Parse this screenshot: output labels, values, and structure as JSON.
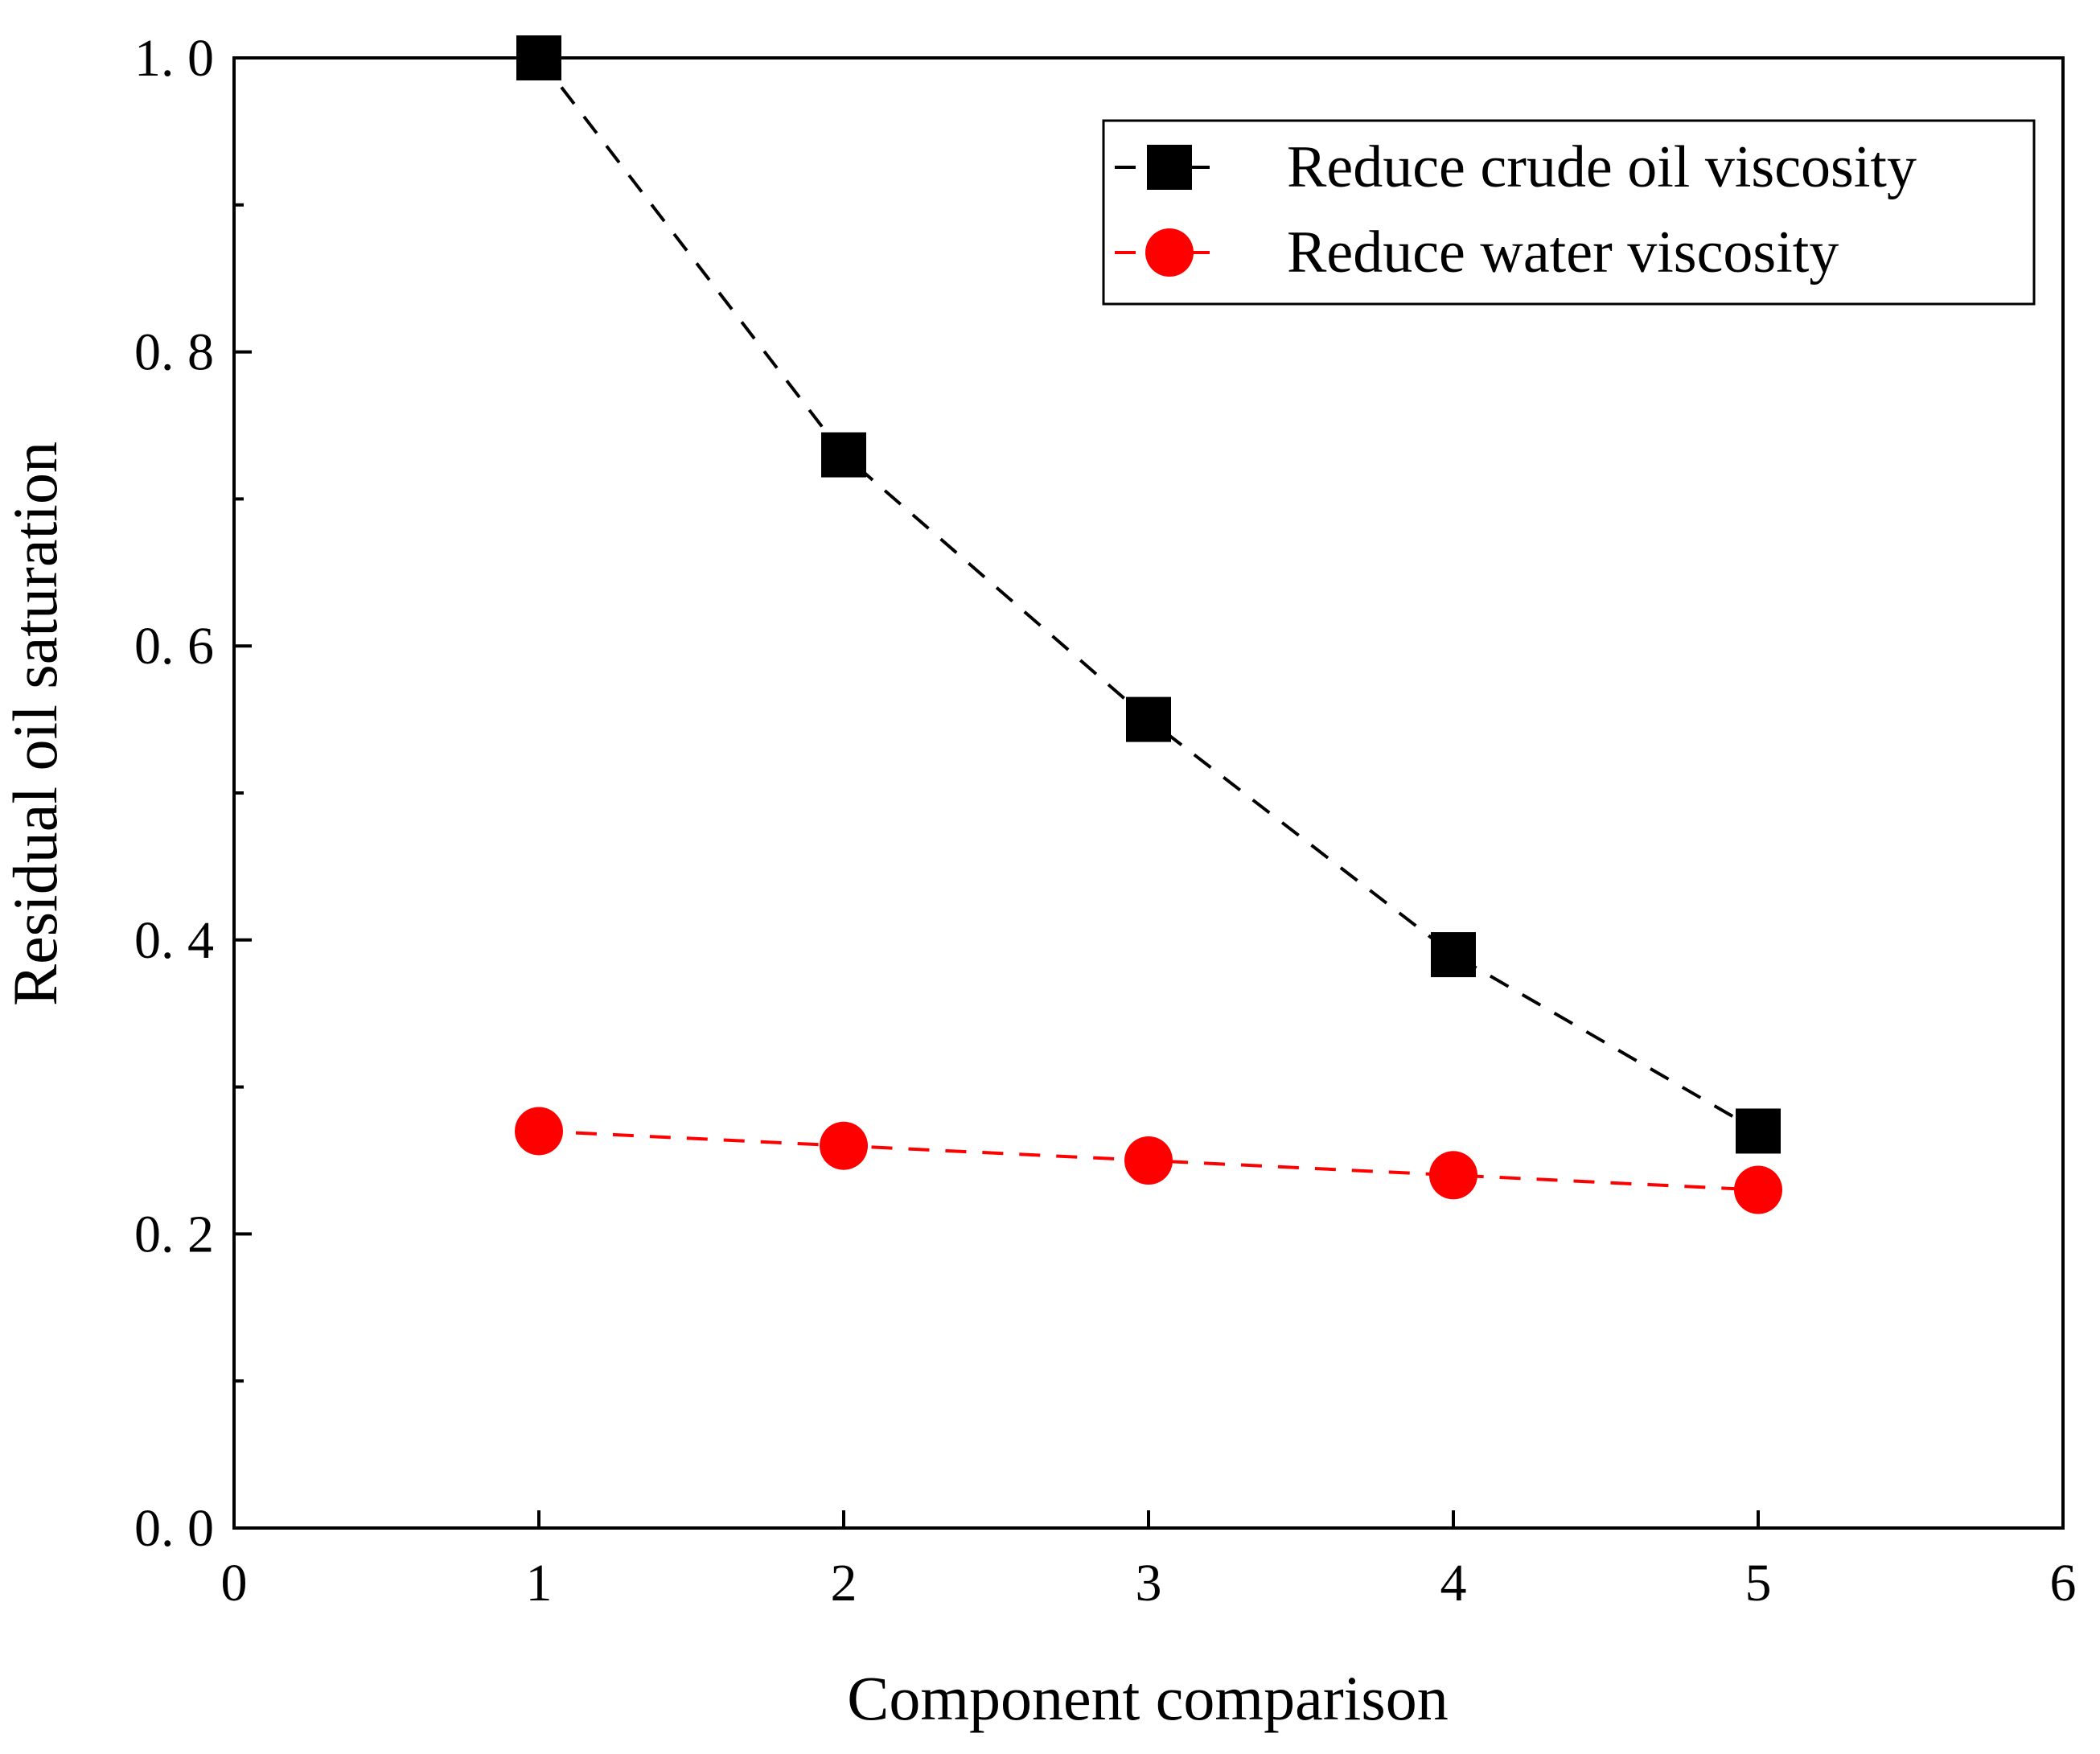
{
  "chart_data": {
    "type": "line",
    "title": "",
    "xlabel": "Component comparison",
    "ylabel": "Residual oil saturation",
    "xlim": [
      0,
      6
    ],
    "ylim": [
      0.0,
      1.0
    ],
    "x_ticks": [
      0,
      1,
      2,
      3,
      4,
      5,
      6
    ],
    "x_tick_labels": [
      "0",
      "1",
      "2",
      "3",
      "4",
      "5",
      "6"
    ],
    "y_ticks": [
      0.0,
      0.2,
      0.4,
      0.6,
      0.8,
      1.0
    ],
    "y_tick_labels": [
      "0. 0",
      "0. 2",
      "0. 4",
      "0. 6",
      "0. 8",
      "1. 0"
    ],
    "y_minor_ticks": [
      0.1,
      0.3,
      0.5,
      0.7,
      0.9
    ],
    "grid": false,
    "legend_position": "top-right",
    "series": [
      {
        "name": "Reduce crude oil viscosity",
        "marker": "square",
        "line_style": "dashed",
        "color": "#000000",
        "x": [
          1,
          2,
          3,
          4,
          5
        ],
        "values": [
          1.0,
          0.73,
          0.55,
          0.39,
          0.27
        ]
      },
      {
        "name": "Reduce water viscosity",
        "marker": "circle",
        "line_style": "dashed",
        "color": "#ff0000",
        "x": [
          1,
          2,
          3,
          4,
          5
        ],
        "values": [
          0.27,
          0.26,
          0.25,
          0.24,
          0.23
        ]
      }
    ]
  }
}
